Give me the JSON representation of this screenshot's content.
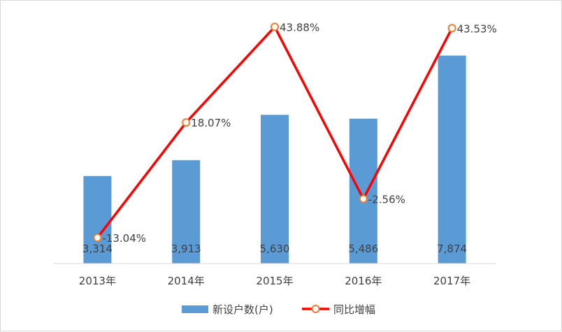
{
  "chart_data": {
    "type": "bar",
    "categories": [
      "2013年",
      "2014年",
      "2015年",
      "2016年",
      "2017年"
    ],
    "series": [
      {
        "name": "新设户数(户)",
        "type": "bar",
        "axis": "left",
        "values": [
          3314,
          3913,
          5630,
          5486,
          7874
        ],
        "value_labels": [
          "3,314",
          "3,913",
          "5,630",
          "5,486",
          "7,874"
        ],
        "color": "#5b9bd5"
      },
      {
        "name": "同比增幅",
        "type": "line",
        "axis": "right",
        "values": [
          -13.04,
          18.07,
          43.88,
          -2.56,
          43.53
        ],
        "value_labels": [
          "-13.04%",
          "18.07%",
          "43.88%",
          "-2.56%",
          "43.53%"
        ],
        "color": "#ff0000",
        "marker_color": "#ed7d31"
      }
    ],
    "left_ylim": [
      0,
      9000
    ],
    "right_ylim": [
      -20,
      50
    ],
    "grid": false,
    "legend_position": "bottom"
  }
}
